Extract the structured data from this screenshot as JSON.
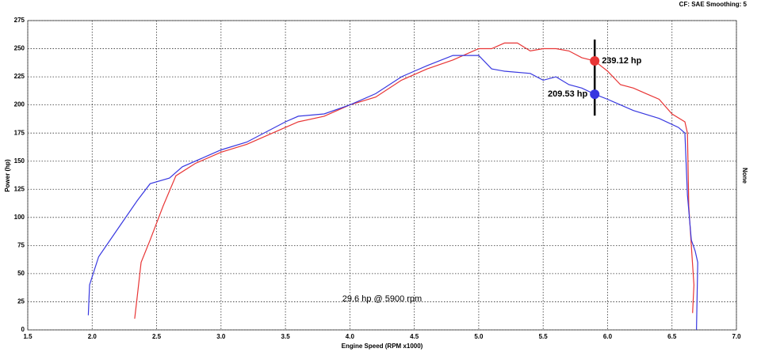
{
  "chart_data": {
    "type": "line",
    "header": "CF: SAE  Smoothing: 5",
    "xlabel": "Engine Speed (RPM x1000)",
    "ylabel": "Power (hp)",
    "y2label": "None",
    "annotation": "29.6 hp @ 5900 rpm",
    "xlim": [
      1.5,
      7.0
    ],
    "xticks": [
      {
        "value": 1.5,
        "label": "1.5"
      },
      {
        "value": 2,
        "label": "2.0"
      },
      {
        "value": 2.5,
        "label": "2.5"
      },
      {
        "value": 3,
        "label": "3.0"
      },
      {
        "value": 3.5,
        "label": "3.5"
      },
      {
        "value": 4,
        "label": "4.0"
      },
      {
        "value": 4.5,
        "label": "4.5"
      },
      {
        "value": 5,
        "label": "5.0"
      },
      {
        "value": 5.5,
        "label": "5.5"
      },
      {
        "value": 6,
        "label": "6.0"
      },
      {
        "value": 6.5,
        "label": "6.5"
      },
      {
        "value": 7,
        "label": "7.0"
      }
    ],
    "ylim": [
      0,
      275
    ],
    "yticks": [
      0,
      25,
      50,
      75,
      100,
      125,
      150,
      175,
      200,
      225,
      250,
      275
    ],
    "grid": true,
    "series": [
      {
        "color": "#e83535",
        "x": [
          2.33,
          2.35,
          2.38,
          2.45,
          2.55,
          2.65,
          2.8,
          3.0,
          3.2,
          3.4,
          3.6,
          3.8,
          4.0,
          4.2,
          4.4,
          4.6,
          4.8,
          5.0,
          5.1,
          5.2,
          5.3,
          5.4,
          5.5,
          5.6,
          5.7,
          5.8,
          5.9,
          6.0,
          6.1,
          6.2,
          6.3,
          6.4,
          6.5,
          6.6,
          6.62,
          6.63,
          6.65,
          6.67,
          6.66
        ],
        "values": [
          10,
          30,
          60,
          80,
          110,
          137,
          148,
          158,
          165,
          175,
          185,
          190,
          200,
          207,
          222,
          232,
          240,
          250,
          250,
          255,
          255,
          248,
          250,
          250,
          248,
          242,
          239.12,
          230,
          218,
          215,
          210,
          205,
          192,
          185,
          175,
          110,
          75,
          40,
          15
        ]
      },
      {
        "color": "#3838e0",
        "x": [
          1.97,
          1.98,
          2.05,
          2.2,
          2.35,
          2.45,
          2.6,
          2.7,
          2.9,
          3.0,
          3.2,
          3.5,
          3.6,
          3.8,
          4.0,
          4.2,
          4.4,
          4.5,
          4.6,
          4.8,
          5.0,
          5.1,
          5.2,
          5.4,
          5.5,
          5.6,
          5.7,
          5.8,
          5.9,
          6.0,
          6.2,
          6.4,
          6.55,
          6.6,
          6.62,
          6.65,
          6.68,
          6.7,
          6.69
        ],
        "values": [
          13,
          40,
          65,
          90,
          115,
          130,
          135,
          145,
          155,
          160,
          167,
          185,
          190,
          192,
          200,
          210,
          225,
          230,
          235,
          244,
          244,
          232,
          230,
          228,
          222,
          225,
          218,
          215,
          209.53,
          205,
          195,
          188,
          180,
          175,
          120,
          80,
          70,
          60,
          0
        ]
      }
    ],
    "markers": [
      {
        "x": 5.9,
        "value": 239.12,
        "label": "239.12 hp",
        "color": "#e83535"
      },
      {
        "x": 5.9,
        "value": 209.53,
        "label": "209.53 hp",
        "color": "#3838e0"
      }
    ]
  }
}
